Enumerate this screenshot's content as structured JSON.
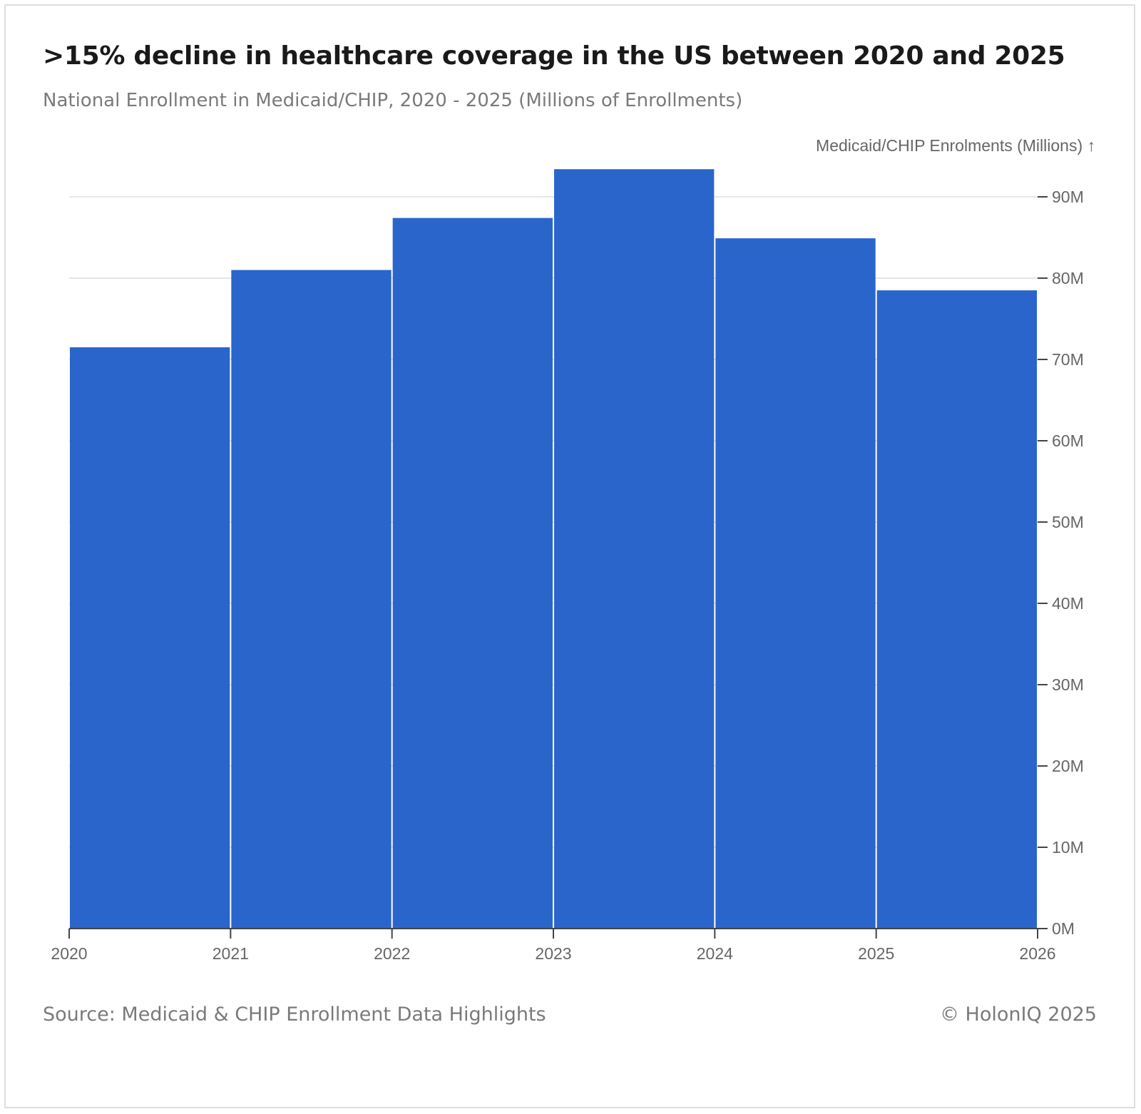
{
  "header": {
    "title": ">15% decline in healthcare coverage in the US between 2020 and 2025",
    "subtitle": "National Enrollment in Medicaid/CHIP, 2020 - 2025 (Millions of Enrollments)"
  },
  "footer": {
    "source": "Source: Medicaid & CHIP Enrollment Data Highlights",
    "copyright": "© HolonIQ 2025"
  },
  "colors": {
    "bar": "#2a65cc",
    "grid": "#e6e6e6",
    "axis_text": "#666666"
  },
  "chart_data": {
    "type": "bar",
    "title": ">15% decline in healthcare coverage in the US between 2020 and 2025",
    "subtitle": "National Enrollment in Medicaid/CHIP, 2020 - 2025 (Millions of Enrollments)",
    "ylabel": "Medicaid/CHIP Enrolments (Millions) ↑",
    "xlabel": "",
    "x_ticks": [
      "2020",
      "2021",
      "2022",
      "2023",
      "2024",
      "2025",
      "2026"
    ],
    "y_ticks": [
      "0M",
      "10M",
      "20M",
      "30M",
      "40M",
      "50M",
      "60M",
      "70M",
      "80M",
      "90M"
    ],
    "bins": [
      {
        "start": 2020,
        "end": 2021,
        "value": 71.5
      },
      {
        "start": 2021,
        "end": 2022,
        "value": 81.0
      },
      {
        "start": 2022,
        "end": 2023,
        "value": 87.4
      },
      {
        "start": 2023,
        "end": 2024,
        "value": 93.4
      },
      {
        "start": 2024,
        "end": 2025,
        "value": 84.9
      },
      {
        "start": 2025,
        "end": 2026,
        "value": 78.5
      }
    ],
    "xlim": [
      2020,
      2026
    ],
    "ylim": [
      0,
      90
    ],
    "y_axis_position": "right",
    "grid": true,
    "legend": "none"
  }
}
